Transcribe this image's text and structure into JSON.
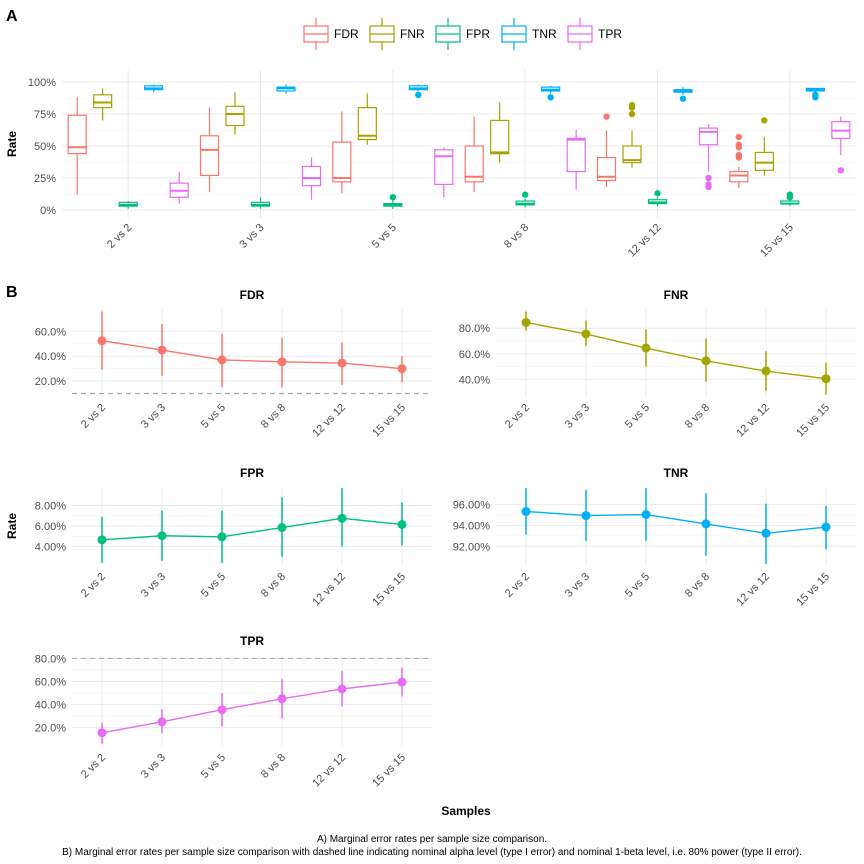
{
  "panel_labels": {
    "a": "A",
    "b": "B"
  },
  "legend": {
    "entries": [
      "FDR",
      "FNR",
      "FPR",
      "TNR",
      "TPR"
    ]
  },
  "colors": {
    "FDR": "#F8766D",
    "FNR": "#A3A500",
    "FPR": "#00BF7D",
    "TNR": "#00B0F6",
    "TPR": "#E76BF3"
  },
  "caption": {
    "line1": "A) Marginal error rates per sample size comparison.",
    "line2": "B) Marginal error rates per sample size comparison with dashed line indicating nominal alpha level (type I error) and nominal 1-beta level, i.e. 80% power (type II error)."
  },
  "xlabel_bottom": "Samples",
  "chart_data": [
    {
      "id": "A",
      "type": "box",
      "ylabel": "Rate",
      "categories": [
        "2 vs 2",
        "3 vs 3",
        "5 vs 5",
        "8 vs 8",
        "12 vs 12",
        "15 vs 15"
      ],
      "ylim": [
        0,
        1
      ],
      "yticks": [
        "0%",
        "25%",
        "50%",
        "75%",
        "100%"
      ],
      "series": [
        {
          "name": "FDR",
          "boxes": [
            {
              "min": 0.12,
              "q1": 0.44,
              "median": 0.49,
              "q3": 0.74,
              "max": 0.88,
              "outliers": []
            },
            {
              "min": 0.14,
              "q1": 0.27,
              "median": 0.47,
              "q3": 0.58,
              "max": 0.8,
              "outliers": []
            },
            {
              "min": 0.13,
              "q1": 0.22,
              "median": 0.25,
              "q3": 0.53,
              "max": 0.77,
              "outliers": []
            },
            {
              "min": 0.14,
              "q1": 0.22,
              "median": 0.26,
              "q3": 0.5,
              "max": 0.73,
              "outliers": []
            },
            {
              "min": 0.18,
              "q1": 0.23,
              "median": 0.26,
              "q3": 0.41,
              "max": 0.62,
              "outliers": [
                0.73
              ]
            },
            {
              "min": 0.17,
              "q1": 0.22,
              "median": 0.27,
              "q3": 0.3,
              "max": 0.34,
              "outliers": [
                0.41,
                0.43,
                0.49,
                0.51,
                0.57
              ]
            }
          ]
        },
        {
          "name": "FNR",
          "boxes": [
            {
              "min": 0.7,
              "q1": 0.8,
              "median": 0.84,
              "q3": 0.9,
              "max": 0.95,
              "outliers": []
            },
            {
              "min": 0.59,
              "q1": 0.66,
              "median": 0.75,
              "q3": 0.81,
              "max": 0.92,
              "outliers": []
            },
            {
              "min": 0.51,
              "q1": 0.55,
              "median": 0.58,
              "q3": 0.8,
              "max": 0.91,
              "outliers": []
            },
            {
              "min": 0.37,
              "q1": 0.44,
              "median": 0.45,
              "q3": 0.7,
              "max": 0.84,
              "outliers": []
            },
            {
              "min": 0.33,
              "q1": 0.37,
              "median": 0.39,
              "q3": 0.5,
              "max": 0.62,
              "outliers": [
                0.75,
                0.8,
                0.82
              ]
            },
            {
              "min": 0.27,
              "q1": 0.31,
              "median": 0.37,
              "q3": 0.45,
              "max": 0.57,
              "outliers": [
                0.7
              ]
            }
          ]
        },
        {
          "name": "FPR",
          "boxes": [
            {
              "min": 0.01,
              "q1": 0.03,
              "median": 0.04,
              "q3": 0.06,
              "max": 0.07,
              "outliers": []
            },
            {
              "min": 0.01,
              "q1": 0.03,
              "median": 0.04,
              "q3": 0.06,
              "max": 0.1,
              "outliers": []
            },
            {
              "min": 0.01,
              "q1": 0.03,
              "median": 0.04,
              "q3": 0.05,
              "max": 0.08,
              "outliers": [
                0.1
              ]
            },
            {
              "min": 0.02,
              "q1": 0.04,
              "median": 0.05,
              "q3": 0.07,
              "max": 0.09,
              "outliers": [
                0.12
              ]
            },
            {
              "min": 0.03,
              "q1": 0.05,
              "median": 0.06,
              "q3": 0.08,
              "max": 0.1,
              "outliers": [
                0.13
              ]
            },
            {
              "min": 0.03,
              "q1": 0.05,
              "median": 0.05,
              "q3": 0.07,
              "max": 0.09,
              "outliers": [
                0.1,
                0.12
              ]
            }
          ]
        },
        {
          "name": "TNR",
          "boxes": [
            {
              "min": 0.92,
              "q1": 0.94,
              "median": 0.95,
              "q3": 0.97,
              "max": 0.98,
              "outliers": []
            },
            {
              "min": 0.91,
              "q1": 0.93,
              "median": 0.95,
              "q3": 0.96,
              "max": 0.98,
              "outliers": []
            },
            {
              "min": 0.93,
              "q1": 0.94,
              "median": 0.95,
              "q3": 0.97,
              "max": 0.98,
              "outliers": [
                0.9
              ]
            },
            {
              "min": 0.91,
              "q1": 0.93,
              "median": 0.94,
              "q3": 0.96,
              "max": 0.97,
              "outliers": [
                0.88
              ]
            },
            {
              "min": 0.9,
              "q1": 0.92,
              "median": 0.93,
              "q3": 0.94,
              "max": 0.96,
              "outliers": [
                0.87
              ]
            },
            {
              "min": 0.91,
              "q1": 0.93,
              "median": 0.94,
              "q3": 0.95,
              "max": 0.95,
              "outliers": [
                0.88,
                0.9
              ]
            }
          ]
        },
        {
          "name": "TPR",
          "boxes": [
            {
              "min": 0.05,
              "q1": 0.1,
              "median": 0.15,
              "q3": 0.21,
              "max": 0.3,
              "outliers": []
            },
            {
              "min": 0.08,
              "q1": 0.19,
              "median": 0.25,
              "q3": 0.34,
              "max": 0.41,
              "outliers": []
            },
            {
              "min": 0.1,
              "q1": 0.2,
              "median": 0.42,
              "q3": 0.47,
              "max": 0.49,
              "outliers": []
            },
            {
              "min": 0.16,
              "q1": 0.3,
              "median": 0.55,
              "q3": 0.56,
              "max": 0.63,
              "outliers": []
            },
            {
              "min": 0.3,
              "q1": 0.51,
              "median": 0.61,
              "q3": 0.64,
              "max": 0.67,
              "outliers": [
                0.18,
                0.2,
                0.25
              ]
            },
            {
              "min": 0.43,
              "q1": 0.56,
              "median": 0.62,
              "q3": 0.69,
              "max": 0.73,
              "outliers": [
                0.31
              ]
            }
          ]
        }
      ]
    },
    {
      "id": "B-FDR",
      "type": "line",
      "title": "FDR",
      "categories": [
        "2 vs 2",
        "3 vs 3",
        "5 vs 5",
        "8 vs 8",
        "12 vs 12",
        "15 vs 15"
      ],
      "values": [
        0.525,
        0.45,
        0.37,
        0.355,
        0.345,
        0.3
      ],
      "lower": [
        0.29,
        0.24,
        0.15,
        0.15,
        0.17,
        0.19
      ],
      "upper": [
        0.76,
        0.66,
        0.58,
        0.55,
        0.51,
        0.4
      ],
      "ylim": [
        0.08,
        0.78
      ],
      "yticks": [
        0.2,
        0.4,
        0.6
      ],
      "ytick_labels": [
        "20.0%",
        "40.0%",
        "60.0%"
      ],
      "reference": 0.1
    },
    {
      "id": "B-FNR",
      "type": "line",
      "title": "FNR",
      "categories": [
        "2 vs 2",
        "3 vs 3",
        "5 vs 5",
        "8 vs 8",
        "12 vs 12",
        "15 vs 15"
      ],
      "values": [
        0.845,
        0.755,
        0.645,
        0.545,
        0.465,
        0.405
      ],
      "lower": [
        0.78,
        0.66,
        0.5,
        0.38,
        0.31,
        0.28
      ],
      "upper": [
        0.93,
        0.86,
        0.79,
        0.72,
        0.62,
        0.53
      ],
      "ylim": [
        0.27,
        0.95
      ],
      "yticks": [
        0.4,
        0.6,
        0.8
      ],
      "ytick_labels": [
        "40.0%",
        "60.0%",
        "80.0%"
      ]
    },
    {
      "id": "B-FPR",
      "type": "line",
      "title": "FPR",
      "categories": [
        "2 vs 2",
        "3 vs 3",
        "5 vs 5",
        "8 vs 8",
        "12 vs 12",
        "15 vs 15"
      ],
      "values": [
        0.0465,
        0.0505,
        0.0495,
        0.0585,
        0.0675,
        0.0615
      ],
      "lower": [
        0.024,
        0.026,
        0.024,
        0.03,
        0.04,
        0.041
      ],
      "upper": [
        0.069,
        0.075,
        0.075,
        0.088,
        0.097,
        0.083
      ],
      "ylim": [
        0.022,
        0.098
      ],
      "yticks": [
        0.04,
        0.06,
        0.08
      ],
      "ytick_labels": [
        "4.00%",
        "6.00%",
        "8.00%"
      ]
    },
    {
      "id": "B-TNR",
      "type": "line",
      "title": "TNR",
      "categories": [
        "2 vs 2",
        "3 vs 3",
        "5 vs 5",
        "8 vs 8",
        "12 vs 12",
        "15 vs 15"
      ],
      "values": [
        0.9535,
        0.9495,
        0.9505,
        0.9415,
        0.9325,
        0.9385
      ],
      "lower": [
        0.931,
        0.925,
        0.925,
        0.911,
        0.903,
        0.917
      ],
      "upper": [
        0.976,
        0.974,
        0.976,
        0.971,
        0.961,
        0.959
      ],
      "ylim": [
        0.902,
        0.977
      ],
      "yticks": [
        0.92,
        0.94,
        0.96
      ],
      "ytick_labels": [
        "92.00%",
        "94.00%",
        "96.00%"
      ]
    },
    {
      "id": "B-TPR",
      "type": "line",
      "title": "TPR",
      "categories": [
        "2 vs 2",
        "3 vs 3",
        "5 vs 5",
        "8 vs 8",
        "12 vs 12",
        "15 vs 15"
      ],
      "values": [
        0.155,
        0.25,
        0.355,
        0.45,
        0.535,
        0.595
      ],
      "lower": [
        0.06,
        0.15,
        0.21,
        0.28,
        0.38,
        0.47
      ],
      "upper": [
        0.24,
        0.36,
        0.5,
        0.62,
        0.69,
        0.72
      ],
      "ylim": [
        0.04,
        0.83
      ],
      "yticks": [
        0.2,
        0.4,
        0.6,
        0.8
      ],
      "ytick_labels": [
        "20.0%",
        "40.0%",
        "60.0%",
        "80.0%"
      ],
      "reference": 0.8
    }
  ]
}
